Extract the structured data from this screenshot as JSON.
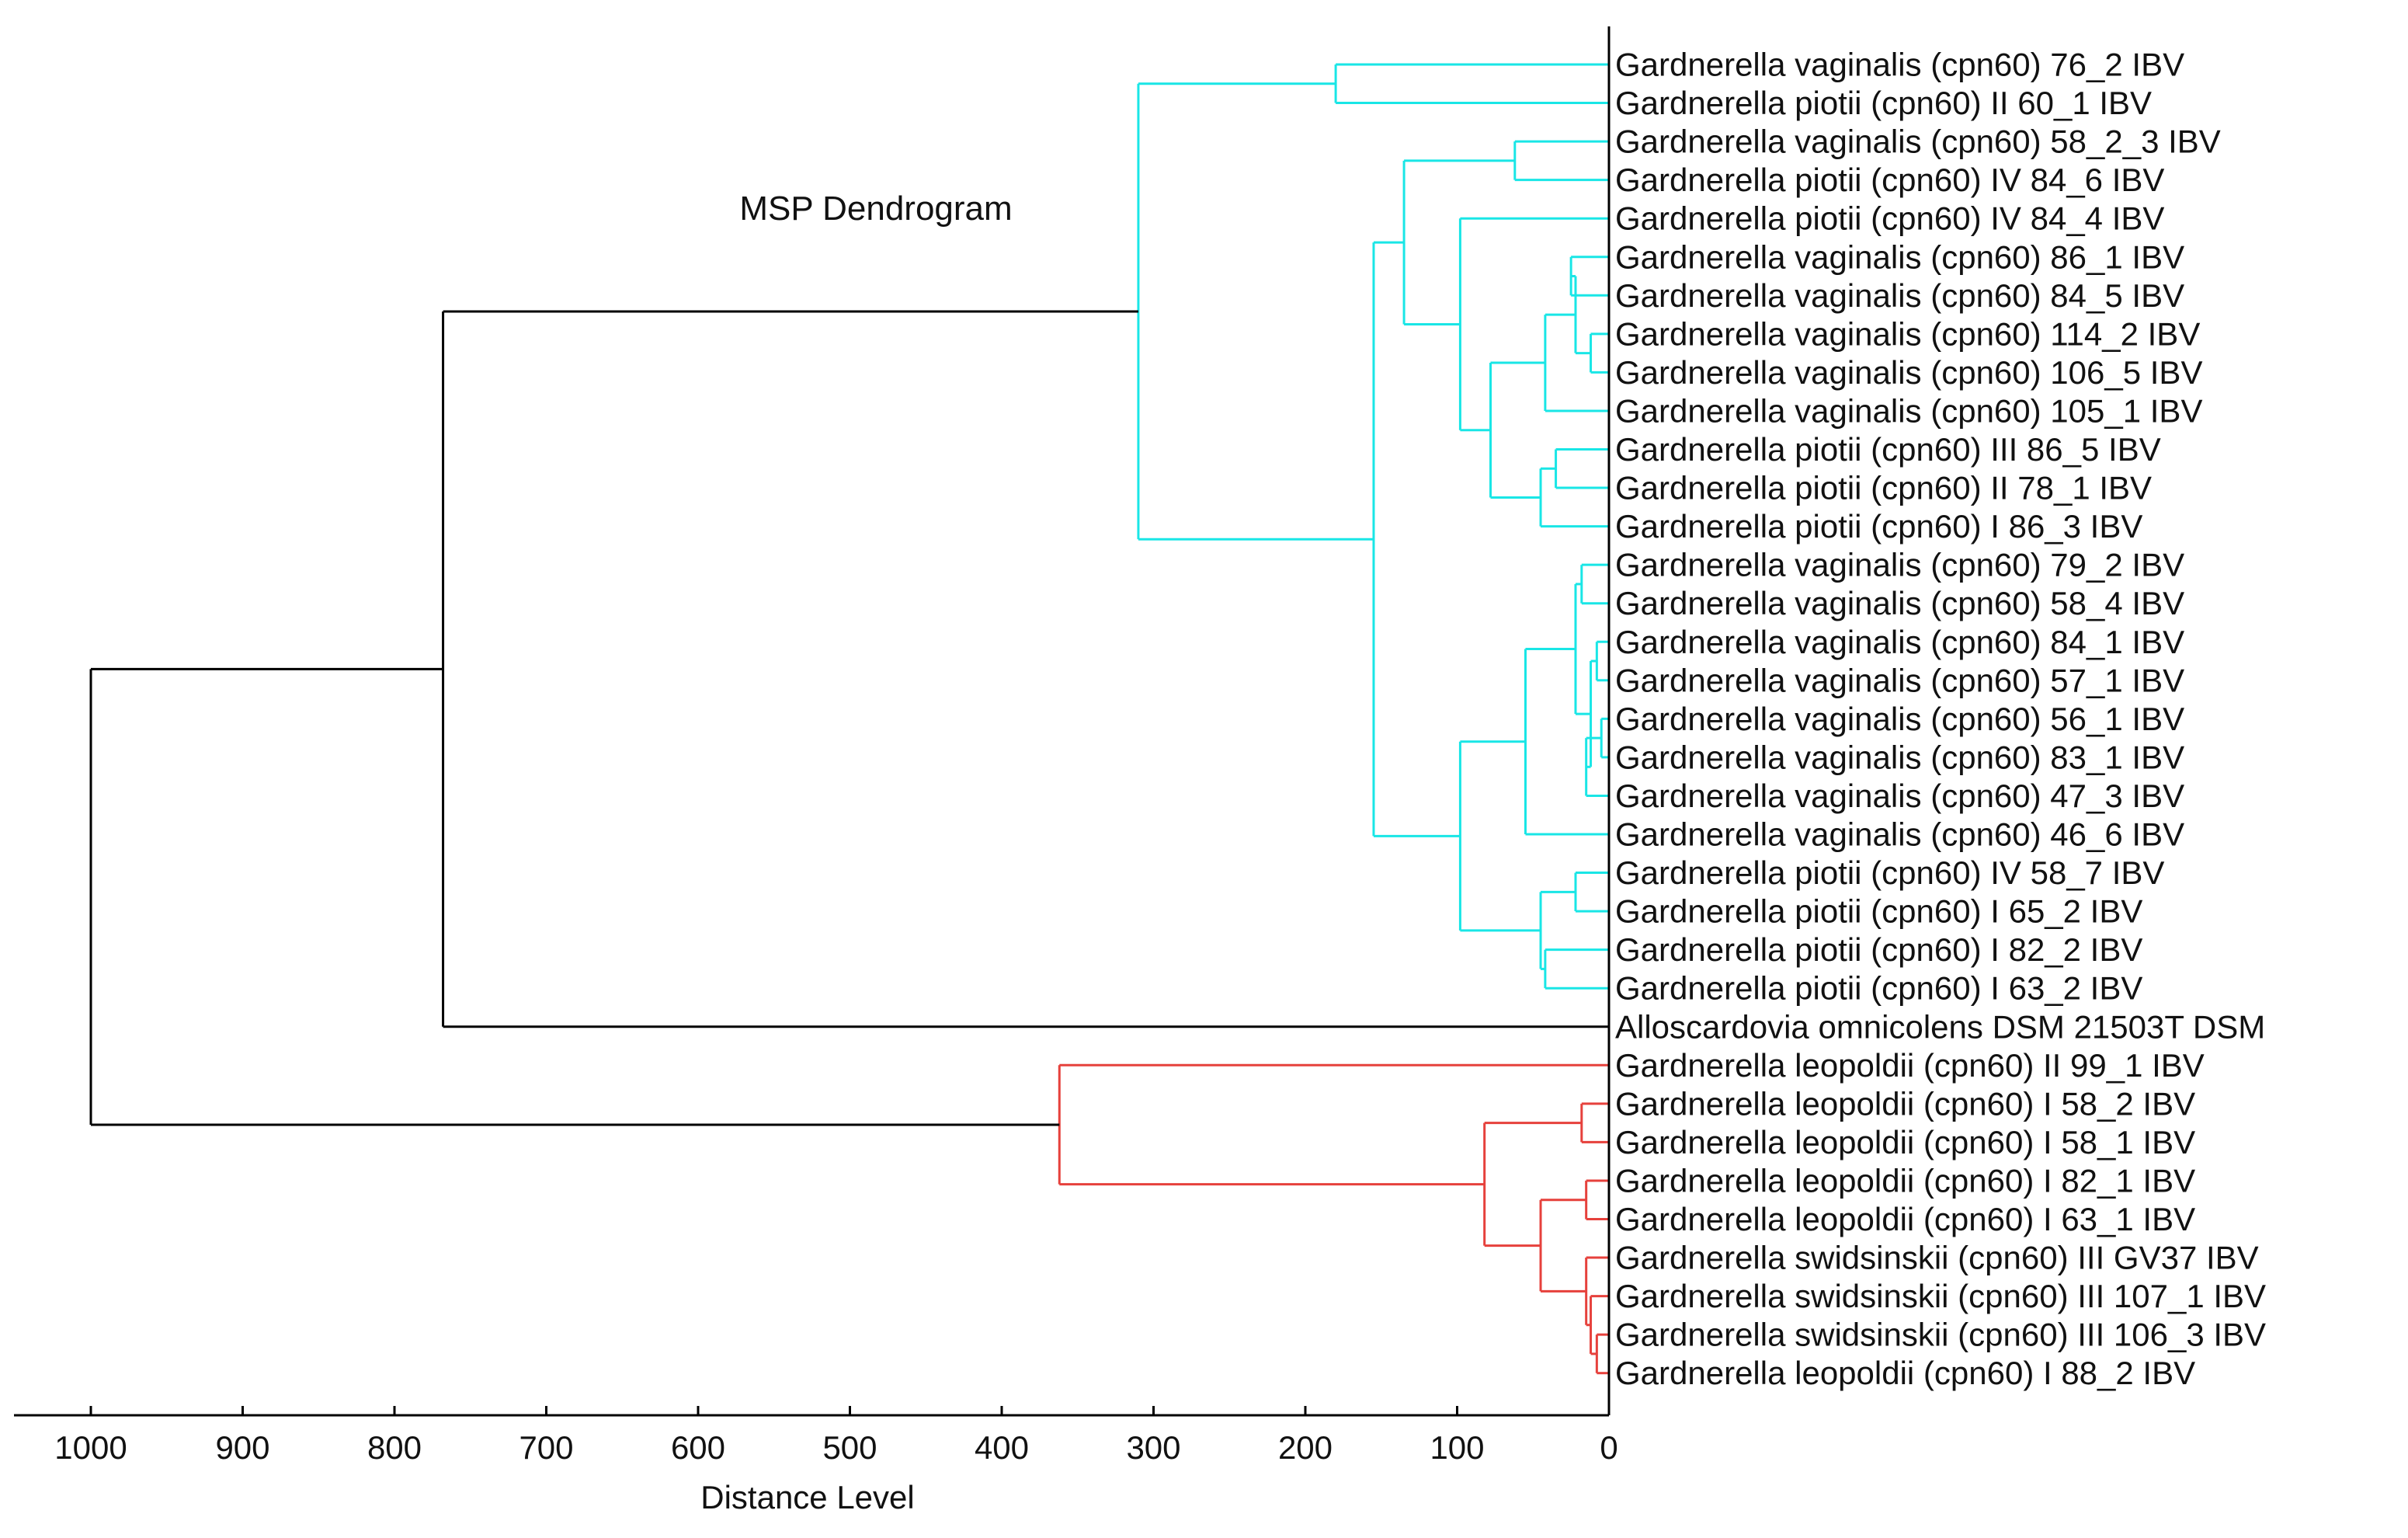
{
  "chart_data": {
    "type": "dendrogram",
    "title": "MSP Dendrogram",
    "xlabel": "Distance Level",
    "xlim": [
      1000,
      0
    ],
    "xticks": [
      1000,
      900,
      800,
      700,
      600,
      500,
      400,
      300,
      200,
      100,
      0
    ],
    "grid": false,
    "colors": {
      "cyan_cluster": "#19e6e6",
      "red_cluster": "#e6413c",
      "root": "#000000"
    },
    "leaves": [
      "Gardnerella  vaginalis  (cpn60)  76_2  IBV",
      "Gardnerella  piotii  (cpn60)  II  60_1  IBV",
      "Gardnerella  vaginalis  (cpn60)  58_2_3  IBV",
      "Gardnerella  piotii  (cpn60)  IV  84_6  IBV",
      "Gardnerella  piotii  (cpn60)  IV  84_4  IBV",
      "Gardnerella  vaginalis  (cpn60)  86_1  IBV",
      "Gardnerella  vaginalis  (cpn60)  84_5  IBV",
      "Gardnerella  vaginalis  (cpn60)  114_2  IBV",
      "Gardnerella  vaginalis  (cpn60)  106_5  IBV",
      "Gardnerella  vaginalis  (cpn60)  105_1  IBV",
      "Gardnerella  piotii  (cpn60)  III  86_5  IBV",
      "Gardnerella  piotii  (cpn60)  II  78_1  IBV",
      "Gardnerella  piotii  (cpn60)  I  86_3  IBV",
      "Gardnerella  vaginalis  (cpn60)  79_2  IBV",
      "Gardnerella  vaginalis  (cpn60)  58_4  IBV",
      "Gardnerella  vaginalis  (cpn60)  84_1  IBV",
      "Gardnerella  vaginalis  (cpn60)  57_1  IBV",
      "Gardnerella  vaginalis  (cpn60)  56_1  IBV",
      "Gardnerella  vaginalis  (cpn60)  83_1  IBV",
      "Gardnerella  vaginalis  (cpn60)  47_3  IBV",
      "Gardnerella  vaginalis  (cpn60)  46_6  IBV",
      "Gardnerella  piotii  (cpn60)  IV  58_7  IBV",
      "Gardnerella  piotii  (cpn60)  I  65_2  IBV",
      "Gardnerella  piotii  (cpn60)  I  82_2  IBV",
      "Gardnerella  piotii  (cpn60)  I  63_2  IBV",
      "Alloscardovia  omnicolens  DSM  21503T  DSM",
      "Gardnerella  leopoldii  (cpn60)  II  99_1  IBV",
      "Gardnerella  leopoldii  (cpn60)  I  58_2  IBV",
      "Gardnerella  leopoldii  (cpn60)  I  58_1  IBV",
      "Gardnerella  leopoldii  (cpn60)  I  82_1  IBV",
      "Gardnerella  leopoldii  (cpn60)  I  63_1  IBV",
      "Gardnerella  swidsinskii  (cpn60)  III  GV37  IBV",
      "Gardnerella  swidsinskii  (cpn60)  III  107_1  IBV",
      "Gardnerella  swidsinskii  (cpn60)  III  106_3  IBV",
      "Gardnerella  leopoldii  (cpn60)  I  88_2  IBV"
    ],
    "merges": [
      {
        "id": "C1",
        "children": [
          "L0",
          "L1"
        ],
        "distance": 180,
        "color": "cyan_cluster"
      },
      {
        "id": "C2",
        "children": [
          "L2",
          "L3"
        ],
        "distance": 62,
        "color": "cyan_cluster"
      },
      {
        "id": "C3",
        "children": [
          "L5",
          "L6"
        ],
        "distance": 25,
        "color": "cyan_cluster"
      },
      {
        "id": "C4",
        "children": [
          "L7",
          "L8"
        ],
        "distance": 12,
        "color": "cyan_cluster"
      },
      {
        "id": "C5",
        "children": [
          "C3",
          "C4"
        ],
        "distance": 22,
        "color": "cyan_cluster"
      },
      {
        "id": "C6",
        "children": [
          "C5",
          "L9"
        ],
        "distance": 42,
        "color": "cyan_cluster"
      },
      {
        "id": "C7",
        "children": [
          "L10",
          "L11"
        ],
        "distance": 35,
        "color": "cyan_cluster"
      },
      {
        "id": "C8",
        "children": [
          "C7",
          "L12"
        ],
        "distance": 45,
        "color": "cyan_cluster"
      },
      {
        "id": "C9",
        "children": [
          "C6",
          "C8"
        ],
        "distance": 78,
        "color": "cyan_cluster"
      },
      {
        "id": "C10",
        "children": [
          "L4",
          "C9"
        ],
        "distance": 98,
        "color": "cyan_cluster"
      },
      {
        "id": "C11",
        "children": [
          "C2",
          "C10"
        ],
        "distance": 135,
        "color": "cyan_cluster"
      },
      {
        "id": "C12",
        "children": [
          "L13",
          "L14"
        ],
        "distance": 18,
        "color": "cyan_cluster"
      },
      {
        "id": "C13",
        "children": [
          "L15",
          "L16"
        ],
        "distance": 8,
        "color": "cyan_cluster"
      },
      {
        "id": "C14",
        "children": [
          "L17",
          "L18"
        ],
        "distance": 5,
        "color": "cyan_cluster"
      },
      {
        "id": "C15",
        "children": [
          "C14",
          "L19"
        ],
        "distance": 15,
        "color": "cyan_cluster"
      },
      {
        "id": "C16",
        "children": [
          "C13",
          "C15"
        ],
        "distance": 12,
        "color": "cyan_cluster"
      },
      {
        "id": "C17",
        "children": [
          "C12",
          "C16"
        ],
        "distance": 22,
        "color": "cyan_cluster"
      },
      {
        "id": "C18",
        "children": [
          "C17",
          "L20"
        ],
        "distance": 55,
        "color": "cyan_cluster"
      },
      {
        "id": "C19",
        "children": [
          "L21",
          "L22"
        ],
        "distance": 22,
        "color": "cyan_cluster"
      },
      {
        "id": "C20",
        "children": [
          "L23",
          "L24"
        ],
        "distance": 42,
        "color": "cyan_cluster"
      },
      {
        "id": "C21",
        "children": [
          "C19",
          "C20"
        ],
        "distance": 45,
        "color": "cyan_cluster"
      },
      {
        "id": "C22",
        "children": [
          "C18",
          "C21"
        ],
        "distance": 98,
        "color": "cyan_cluster"
      },
      {
        "id": "C23",
        "children": [
          "C11",
          "C22"
        ],
        "distance": 155,
        "color": "cyan_cluster"
      },
      {
        "id": "C24",
        "children": [
          "C1",
          "C23"
        ],
        "distance": 310,
        "color": "cyan_cluster"
      },
      {
        "id": "C25",
        "children": [
          "C24",
          "L25"
        ],
        "distance": 768,
        "color": "root"
      },
      {
        "id": "C26",
        "children": [
          "L27",
          "L28"
        ],
        "distance": 18,
        "color": "red_cluster"
      },
      {
        "id": "C27",
        "children": [
          "L29",
          "L30"
        ],
        "distance": 15,
        "color": "red_cluster"
      },
      {
        "id": "C28",
        "children": [
          "L33",
          "L34"
        ],
        "distance": 8,
        "color": "red_cluster"
      },
      {
        "id": "C29",
        "children": [
          "L32",
          "C28"
        ],
        "distance": 12,
        "color": "red_cluster"
      },
      {
        "id": "C30",
        "children": [
          "L31",
          "C29"
        ],
        "distance": 15,
        "color": "red_cluster"
      },
      {
        "id": "C31",
        "children": [
          "C27",
          "C30"
        ],
        "distance": 45,
        "color": "red_cluster"
      },
      {
        "id": "C32",
        "children": [
          "C26",
          "C31"
        ],
        "distance": 82,
        "color": "red_cluster"
      },
      {
        "id": "C33",
        "children": [
          "L26",
          "C32"
        ],
        "distance": 362,
        "color": "red_cluster"
      },
      {
        "id": "C34",
        "children": [
          "C25",
          "C33"
        ],
        "distance": 1000,
        "color": "root"
      }
    ]
  }
}
